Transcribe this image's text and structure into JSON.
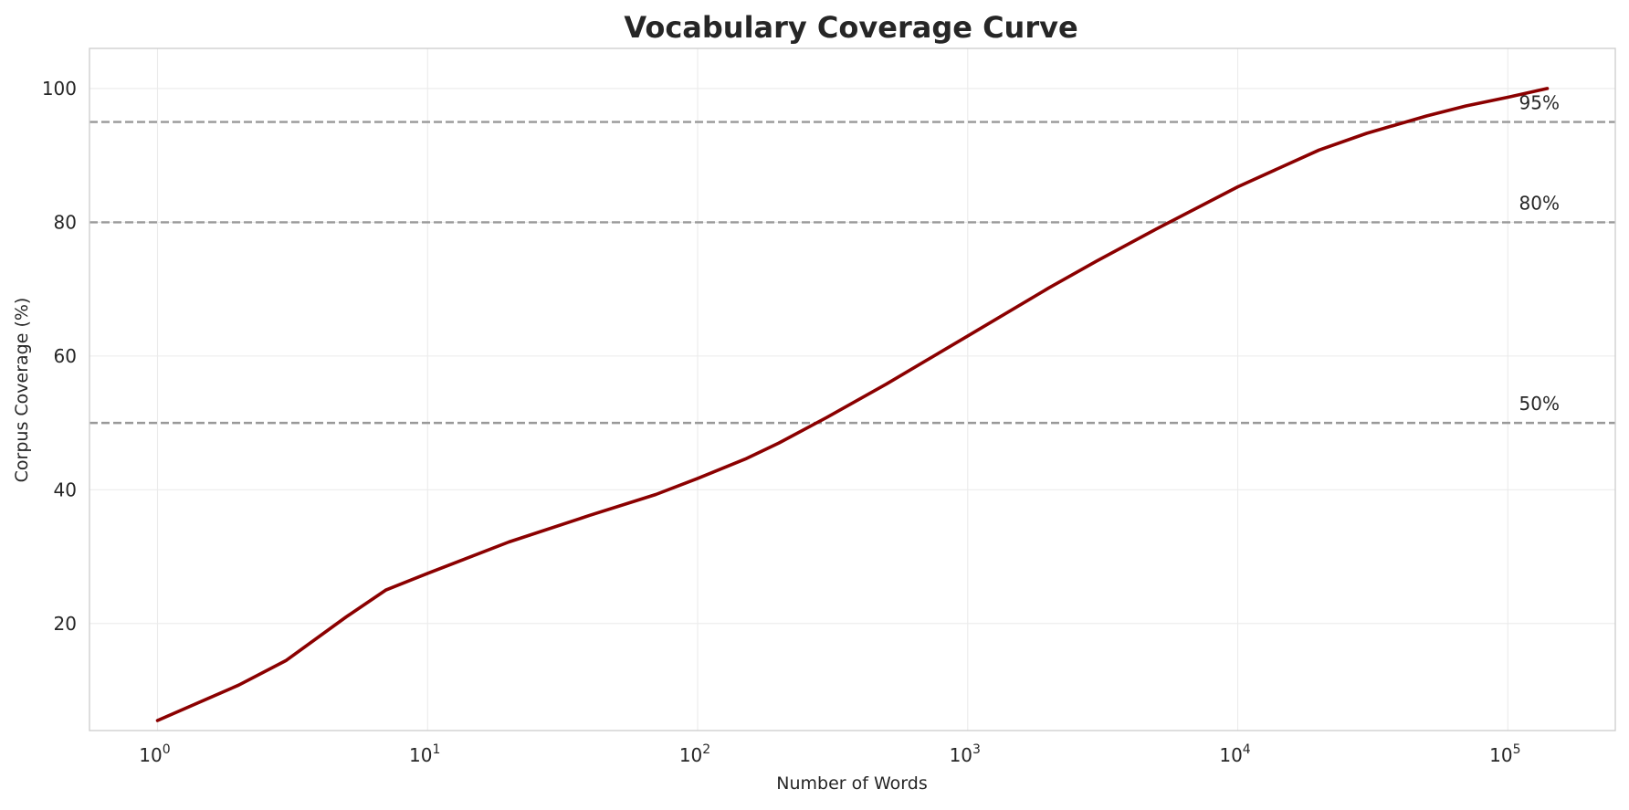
{
  "chart_data": {
    "type": "line",
    "title": "Vocabulary Coverage Curve",
    "xlabel": "Number of Words",
    "ylabel": "Corpus Coverage (%)",
    "x_scale": "log",
    "xlim": [
      0.56,
      250000
    ],
    "ylim": [
      4.0,
      106.0
    ],
    "grid": true,
    "legend": "none",
    "x_ticks": [
      {
        "value": 1,
        "base": "10",
        "exp": "0"
      },
      {
        "value": 10,
        "base": "10",
        "exp": "1"
      },
      {
        "value": 100,
        "base": "10",
        "exp": "2"
      },
      {
        "value": 1000,
        "base": "10",
        "exp": "3"
      },
      {
        "value": 10000,
        "base": "10",
        "exp": "4"
      },
      {
        "value": 100000,
        "base": "10",
        "exp": "5"
      }
    ],
    "y_ticks": [
      {
        "value": 20,
        "label": "20"
      },
      {
        "value": 40,
        "label": "40"
      },
      {
        "value": 60,
        "label": "60"
      },
      {
        "value": 80,
        "label": "80"
      },
      {
        "value": 100,
        "label": "100"
      }
    ],
    "reference_lines": [
      {
        "y": 95,
        "label": "95%"
      },
      {
        "y": 80,
        "label": "80%"
      },
      {
        "y": 50,
        "label": "50%"
      }
    ],
    "series": [
      {
        "color": "#8b0000",
        "x": [
          1,
          2,
          3,
          5,
          7,
          10,
          20,
          40,
          70,
          100,
          150,
          200,
          300,
          500,
          1000,
          2000,
          3000,
          5000,
          10000,
          20000,
          30000,
          50000,
          70000,
          100000,
          140000
        ],
        "y": [
          5.5,
          10.8,
          14.5,
          21.0,
          25.0,
          27.5,
          32.2,
          36.2,
          39.3,
          41.7,
          44.6,
          47.0,
          50.8,
          55.8,
          63.0,
          70.2,
          74.2,
          79.0,
          85.3,
          90.8,
          93.3,
          95.9,
          97.4,
          98.7,
          100.0
        ]
      }
    ],
    "colors": {
      "line": "#8b0000",
      "reference": "#999999",
      "grid": "#ebebeb",
      "frame": "#cccccc",
      "text": "#262626"
    }
  }
}
